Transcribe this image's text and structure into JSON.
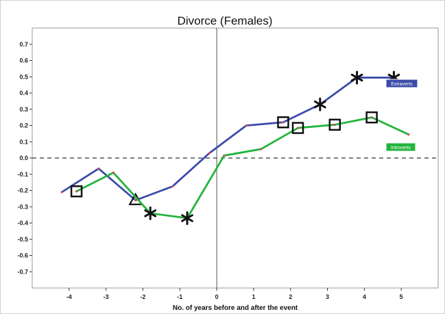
{
  "chart_data": {
    "type": "line",
    "title": "Divorce (Females)",
    "xlabel": "No. of years before and after the event",
    "ylabel": "",
    "xlim": [
      -5,
      6
    ],
    "ylim": [
      -0.8,
      0.8
    ],
    "x_ticks": [
      -4,
      -3,
      -2,
      -1,
      0,
      1,
      2,
      3,
      4,
      5
    ],
    "y_ticks": [
      0.7,
      0.6,
      0.5,
      0.4,
      0.3,
      0.2,
      0.1,
      0.0,
      -0.1,
      -0.2,
      -0.3,
      -0.4,
      -0.5,
      -0.6,
      -0.7
    ],
    "y_tick_labels": [
      "0.7",
      "0.6",
      "0.5",
      "0.4",
      "0.3",
      "0.2",
      "0.1",
      "0.0",
      "-0.1",
      "-0.2",
      "-0.3",
      "-0.4",
      "-0.5",
      "-0.6",
      "-0.7"
    ],
    "x_tick_labels": [
      "-4",
      "-3",
      "-2",
      "-1",
      "0",
      "1",
      "2",
      "3",
      "4",
      "5"
    ],
    "reference_line": {
      "y": 0.0,
      "style": "dashed",
      "color": "#555555"
    },
    "vertical_line": {
      "x": 0,
      "color": "#555555"
    },
    "series": [
      {
        "name": "Extraverts",
        "color": "#3b4ba8",
        "x": [
          -4.2,
          -3.2,
          -2.2,
          -1.2,
          -0.2,
          0.8,
          1.8,
          2.8,
          3.8,
          4.8
        ],
        "y": [
          -0.21,
          -0.065,
          -0.26,
          -0.175,
          0.03,
          0.2,
          0.22,
          0.33,
          0.495,
          0.495
        ],
        "markers": [
          "none",
          "none",
          "triangle",
          "none",
          "none",
          "none",
          "square",
          "star",
          "star",
          "star"
        ]
      },
      {
        "name": "Introverts",
        "color": "#22b43c",
        "x": [
          -3.8,
          -2.8,
          -1.8,
          -0.8,
          0.2,
          1.2,
          2.2,
          3.2,
          4.2,
          5.2
        ],
        "y": [
          -0.205,
          -0.09,
          -0.34,
          -0.37,
          0.015,
          0.055,
          0.185,
          0.205,
          0.25,
          0.145
        ],
        "markers": [
          "square",
          "none",
          "star",
          "star",
          "none",
          "none",
          "square",
          "square",
          "square",
          "none"
        ]
      }
    ],
    "legend": "inline-right"
  }
}
